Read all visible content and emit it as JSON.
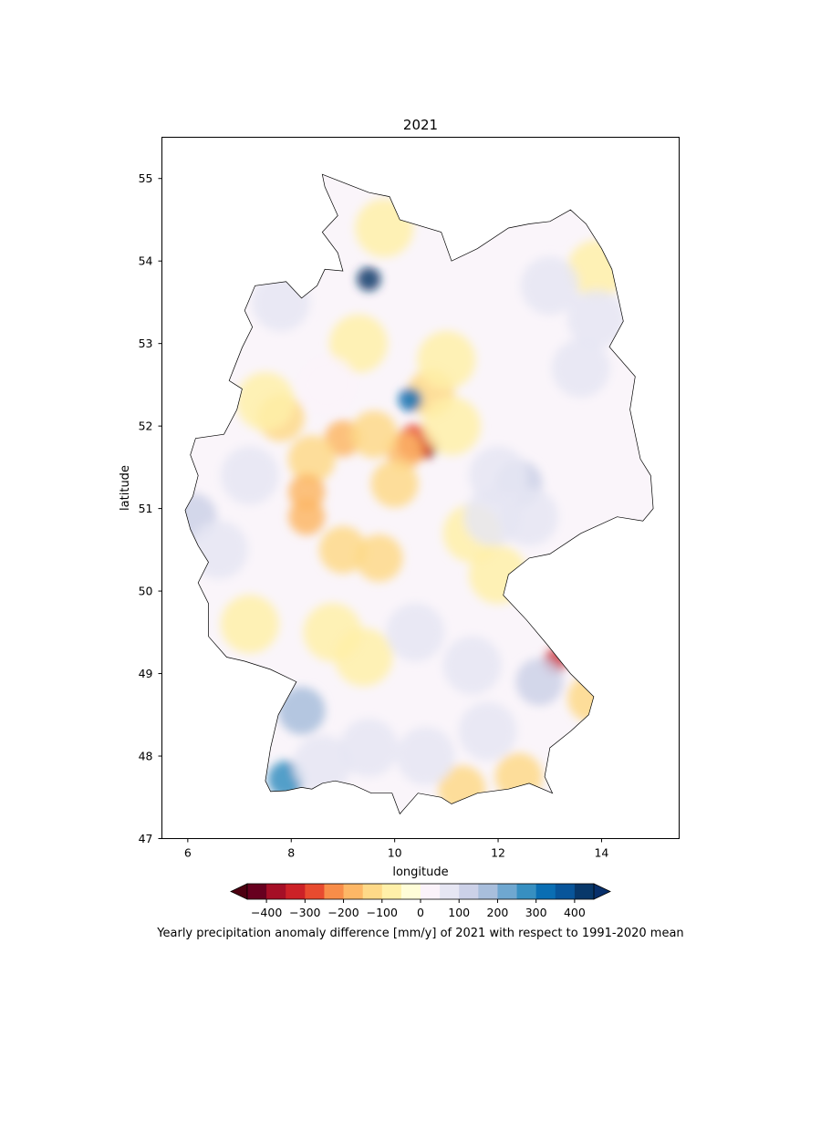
{
  "chart_data": {
    "type": "heatmap",
    "title": "2021",
    "xlabel": "longitude",
    "ylabel": "latitude",
    "xlim": [
      5.5,
      15.5
    ],
    "ylim": [
      47,
      55.5
    ],
    "x_ticks": [
      6,
      8,
      10,
      12,
      14
    ],
    "y_ticks": [
      47,
      48,
      49,
      50,
      51,
      52,
      53,
      54,
      55
    ],
    "colorbar": {
      "label": "Yearly precipitation anomaly difference [mm/y] of 2021 with respect to 1991-2020 mean",
      "levels": [
        -450,
        -400,
        -350,
        -300,
        -250,
        -200,
        -150,
        -100,
        -50,
        0,
        50,
        100,
        150,
        200,
        250,
        300,
        350,
        400,
        450
      ],
      "tick_labels": [
        "−400",
        "−300",
        "−200",
        "−100",
        "0",
        "100",
        "200",
        "300",
        "400"
      ],
      "tick_values": [
        -400,
        -300,
        -200,
        -100,
        0,
        100,
        200,
        300,
        400
      ],
      "colors": [
        "#67001f",
        "#a50f26",
        "#cc2127",
        "#e84b2f",
        "#f88d49",
        "#fdb766",
        "#fed988",
        "#fff0a9",
        "#fffdd8",
        "#fbf3fa",
        "#e6e6f3",
        "#ccd1e8",
        "#a8bedc",
        "#6fa7d0",
        "#378fc1",
        "#0a6eb3",
        "#08559a",
        "#08386a"
      ],
      "extend_low_color": "#4d0011",
      "extend_high_color": "#08306b"
    },
    "anomaly_points": [
      {
        "lon": 10.6,
        "lat": 51.75,
        "value": -420
      },
      {
        "lon": 10.4,
        "lat": 51.8,
        "value": -300
      },
      {
        "lon": 10.2,
        "lat": 51.7,
        "value": -180
      },
      {
        "lon": 9.0,
        "lat": 51.85,
        "value": -190
      },
      {
        "lon": 8.4,
        "lat": 51.6,
        "value": -150
      },
      {
        "lon": 8.3,
        "lat": 51.2,
        "value": -170
      },
      {
        "lon": 8.3,
        "lat": 50.9,
        "value": -190
      },
      {
        "lon": 7.8,
        "lat": 52.1,
        "value": -140
      },
      {
        "lon": 9.6,
        "lat": 51.9,
        "value": -140
      },
      {
        "lon": 10.0,
        "lat": 51.3,
        "value": -120
      },
      {
        "lon": 9.0,
        "lat": 50.5,
        "value": -150
      },
      {
        "lon": 9.7,
        "lat": 50.4,
        "value": -110
      },
      {
        "lon": 10.7,
        "lat": 52.4,
        "value": -110
      },
      {
        "lon": 11.0,
        "lat": 52.8,
        "value": -80
      },
      {
        "lon": 7.5,
        "lat": 52.3,
        "value": -90
      },
      {
        "lon": 11.1,
        "lat": 52.0,
        "value": -90
      },
      {
        "lon": 9.8,
        "lat": 54.4,
        "value": -70
      },
      {
        "lon": 9.3,
        "lat": 53.0,
        "value": -60
      },
      {
        "lon": 8.8,
        "lat": 49.5,
        "value": -70
      },
      {
        "lon": 9.4,
        "lat": 49.2,
        "value": -60
      },
      {
        "lon": 7.2,
        "lat": 49.6,
        "value": -90
      },
      {
        "lon": 11.5,
        "lat": 50.7,
        "value": -70
      },
      {
        "lon": 13.8,
        "lat": 48.7,
        "value": -130
      },
      {
        "lon": 13.1,
        "lat": 49.15,
        "value": -330
      },
      {
        "lon": 12.4,
        "lat": 47.75,
        "value": -110
      },
      {
        "lon": 11.3,
        "lat": 47.6,
        "value": -120
      },
      {
        "lon": 13.9,
        "lat": 53.9,
        "value": -80
      },
      {
        "lon": 12.0,
        "lat": 50.2,
        "value": -60
      },
      {
        "lon": 9.5,
        "lat": 53.78,
        "value": 430
      },
      {
        "lon": 10.3,
        "lat": 52.32,
        "value": 330
      },
      {
        "lon": 7.9,
        "lat": 47.72,
        "value": 260
      },
      {
        "lon": 8.2,
        "lat": 48.55,
        "value": 150
      },
      {
        "lon": 6.1,
        "lat": 50.9,
        "value": 120
      },
      {
        "lon": 12.4,
        "lat": 51.3,
        "value": 110
      },
      {
        "lon": 12.0,
        "lat": 51.4,
        "value": 90
      },
      {
        "lon": 11.9,
        "lat": 50.9,
        "value": 80
      },
      {
        "lon": 12.6,
        "lat": 50.9,
        "value": 80
      },
      {
        "lon": 13.9,
        "lat": 53.3,
        "value": 90
      },
      {
        "lon": 13.0,
        "lat": 53.7,
        "value": 70
      },
      {
        "lon": 13.6,
        "lat": 52.7,
        "value": 50
      },
      {
        "lon": 7.2,
        "lat": 51.4,
        "value": 70
      },
      {
        "lon": 6.6,
        "lat": 50.5,
        "value": 60
      },
      {
        "lon": 10.4,
        "lat": 49.5,
        "value": 80
      },
      {
        "lon": 10.6,
        "lat": 48.0,
        "value": 90
      },
      {
        "lon": 9.5,
        "lat": 48.1,
        "value": 60
      },
      {
        "lon": 8.6,
        "lat": 47.9,
        "value": 80
      },
      {
        "lon": 11.8,
        "lat": 48.3,
        "value": 70
      },
      {
        "lon": 12.8,
        "lat": 48.9,
        "value": 110
      },
      {
        "lon": 11.5,
        "lat": 49.1,
        "value": 60
      },
      {
        "lon": 7.8,
        "lat": 53.5,
        "value": 50
      },
      {
        "lon": 8.7,
        "lat": 52.5,
        "value": 40
      }
    ]
  }
}
